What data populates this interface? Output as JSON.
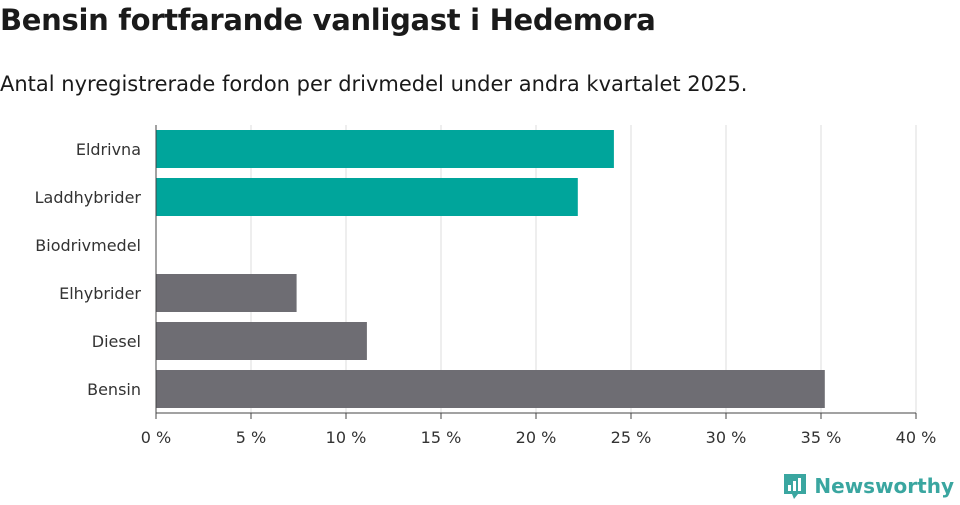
{
  "header": {
    "title": "Bensin fortfarande vanligast i Hedemora",
    "subtitle": "Antal nyregistrerade fordon per drivmedel under andra kvartalet 2025."
  },
  "brand": {
    "name": "Newsworthy",
    "icon": "newsworthy-logo-icon",
    "color": "#3aa6a0"
  },
  "chart_data": {
    "type": "bar",
    "orientation": "horizontal",
    "title": "Bensin fortfarande vanligast i Hedemora",
    "subtitle": "Antal nyregistrerade fordon per drivmedel under andra kvartalet 2025.",
    "categories": [
      "Eldrivna",
      "Laddhybrider",
      "Biodrivmedel",
      "Elhybrider",
      "Diesel",
      "Bensin"
    ],
    "values": [
      24.1,
      22.2,
      0,
      7.4,
      11.1,
      35.2
    ],
    "colors": [
      "#00a59b",
      "#00a59b",
      "#00a59b",
      "#6e6d73",
      "#6e6d73",
      "#6e6d73"
    ],
    "xlim": [
      0,
      40
    ],
    "xticks": [
      0,
      5,
      10,
      15,
      20,
      25,
      30,
      35,
      40
    ],
    "xtick_labels": [
      "0 %",
      "5 %",
      "10 %",
      "15 %",
      "20 %",
      "25 %",
      "30 %",
      "35 %",
      "40 %"
    ],
    "grid": "vertical",
    "legend": "none"
  }
}
